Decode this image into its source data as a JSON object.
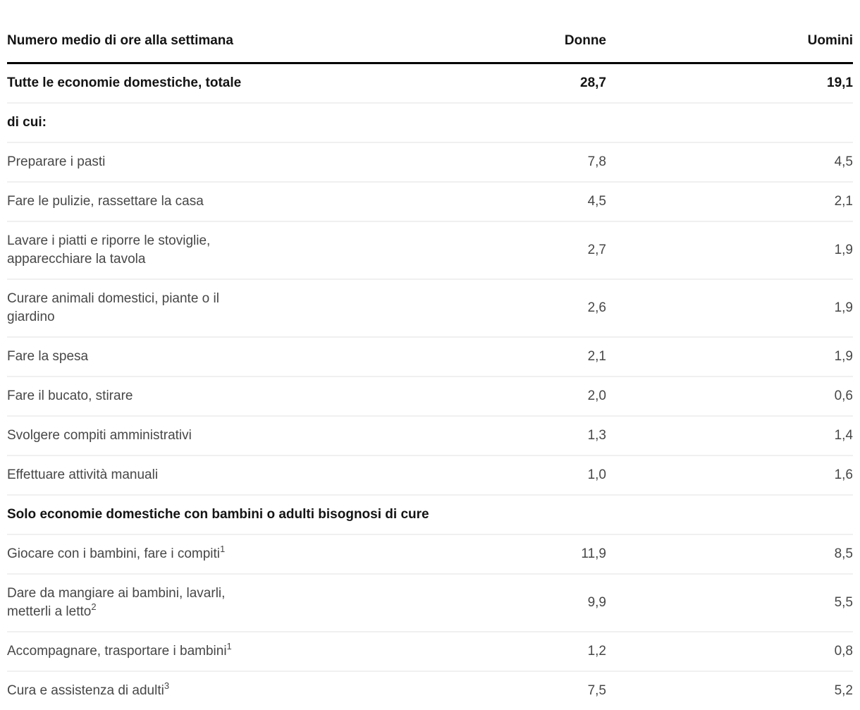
{
  "colors": {
    "heading_text": "#141414",
    "body_text": "#474747",
    "header_rule": "#000000",
    "row_divider": "#f0f0f0",
    "background": "#ffffff"
  },
  "chart_data": {
    "type": "table",
    "title": "Numero medio di ore alla settimana",
    "columns": [
      "Numero medio di ore alla settimana",
      "Donne",
      "Uomini"
    ],
    "rows": [
      {
        "label": "Tutte le economie domestiche, totale",
        "donne": "28,7",
        "uomini": "19,1"
      },
      {
        "label": "di cui:",
        "donne": "",
        "uomini": ""
      },
      {
        "label": "Preparare i pasti",
        "donne": "7,8",
        "uomini": "4,5"
      },
      {
        "label": "Fare le pulizie, rassettare la casa",
        "donne": "4,5",
        "uomini": "2,1"
      },
      {
        "label": "Lavare i piatti e riporre le stoviglie,\napparecchiare la tavola",
        "donne": "2,7",
        "uomini": "1,9"
      },
      {
        "label": "Curare animali domestici, piante o il\ngiardino",
        "donne": "2,6",
        "uomini": "1,9"
      },
      {
        "label": "Fare la spesa",
        "donne": "2,1",
        "uomini": "1,9"
      },
      {
        "label": "Fare il bucato, stirare",
        "donne": "2,0",
        "uomini": "0,6"
      },
      {
        "label": "Svolgere compiti amministrativi",
        "donne": "1,3",
        "uomini": "1,4"
      },
      {
        "label": "Effettuare attività manuali",
        "donne": "1,0",
        "uomini": "1,6"
      },
      {
        "label": "Solo economie domestiche con bambini o adulti bisognosi di cure"
      },
      {
        "label": "Giocare con i bambini, fare i compiti",
        "sup": "1",
        "donne": "11,9",
        "uomini": "8,5"
      },
      {
        "label": "Dare da mangiare ai bambini, lavarli,\nmetterli a letto",
        "sup": "2",
        "donne": "9,9",
        "uomini": "5,5"
      },
      {
        "label": "Accompagnare, trasportare i bambini",
        "sup": "1",
        "donne": "1,2",
        "uomini": "0,8"
      },
      {
        "label": "Cura e assistenza di adulti",
        "sup": "3",
        "donne": "7,5",
        "uomini": "5,2"
      }
    ]
  }
}
